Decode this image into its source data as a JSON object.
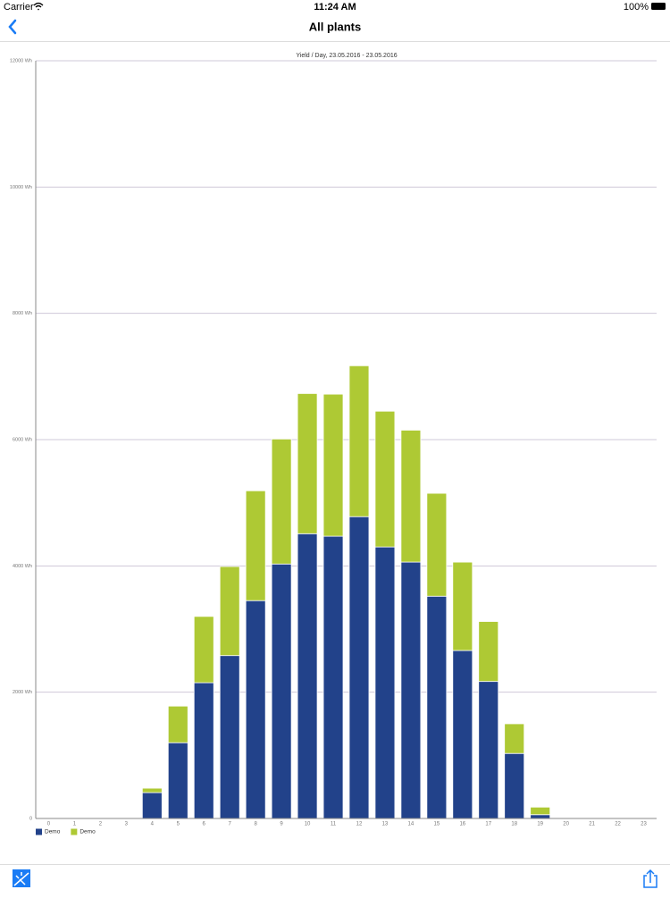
{
  "status_bar": {
    "carrier": "Carrier",
    "time": "11:24 AM",
    "battery": "100%"
  },
  "nav": {
    "title": "All plants"
  },
  "chart_data": {
    "type": "stacked-bar",
    "title": "Yield / Day, 23.05.2016 - 23.05.2016",
    "categories": [
      "0",
      "1",
      "2",
      "3",
      "4",
      "5",
      "6",
      "7",
      "8",
      "9",
      "10",
      "11",
      "12",
      "13",
      "14",
      "15",
      "16",
      "17",
      "18",
      "19",
      "20",
      "21",
      "22",
      "23"
    ],
    "series": [
      {
        "name": "Demo",
        "color": "#22428a",
        "values": [
          0,
          0,
          0,
          0,
          410,
          1200,
          2150,
          2580,
          3450,
          4030,
          4510,
          4470,
          4780,
          4300,
          4060,
          3520,
          2660,
          2170,
          1030,
          60,
          0,
          0,
          0,
          0
        ]
      },
      {
        "name": "Demo",
        "color": "#aec934",
        "values": [
          0,
          0,
          0,
          0,
          70,
          580,
          1050,
          1410,
          1740,
          1980,
          2220,
          2250,
          2390,
          2150,
          2090,
          1630,
          1400,
          950,
          470,
          120,
          0,
          0,
          0,
          0
        ]
      }
    ],
    "ylim": [
      0,
      12000
    ],
    "yticks": [
      0,
      {
        "value": 2000,
        "label": "2000 Wh"
      },
      {
        "value": 4000,
        "label": "4000 Wh"
      },
      {
        "value": 6000,
        "label": "6000 Wh"
      },
      {
        "value": 8000,
        "label": "8000 Wh"
      },
      {
        "value": 10000,
        "label": "10000 Wh"
      },
      {
        "value": 12000,
        "label": "12000 Wh"
      }
    ],
    "grid": true,
    "legend": "bottom-left"
  }
}
